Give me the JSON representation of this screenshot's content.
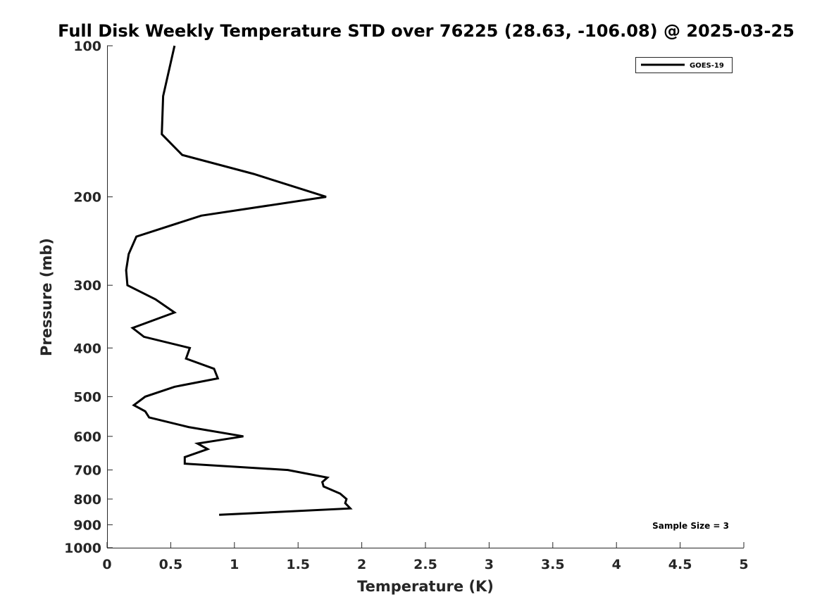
{
  "chart_data": {
    "type": "line",
    "title": "Full Disk Weekly Temperature STD over 76225 (28.63, -106.08) @ 2025-03-25",
    "xlabel": "Temperature (K)",
    "ylabel": "Pressure (mb)",
    "xlim": [
      0,
      5
    ],
    "ylim": [
      100,
      1000
    ],
    "y_scale": "log",
    "y_reversed": true,
    "grid": false,
    "legend_position": "top-right",
    "x_ticks": [
      "0",
      "0.5",
      "1",
      "1.5",
      "2",
      "2.5",
      "3",
      "3.5",
      "4",
      "4.5",
      "5"
    ],
    "y_ticks": [
      "100",
      "200",
      "300",
      "400",
      "500",
      "600",
      "700",
      "800",
      "900",
      "1000"
    ],
    "series": [
      {
        "name": "GOES-19",
        "color": "#000000",
        "points": [
          {
            "x": 0.53,
            "y": 100
          },
          {
            "x": 0.44,
            "y": 126
          },
          {
            "x": 0.43,
            "y": 150
          },
          {
            "x": 0.59,
            "y": 165
          },
          {
            "x": 1.15,
            "y": 180
          },
          {
            "x": 1.72,
            "y": 200
          },
          {
            "x": 0.74,
            "y": 218
          },
          {
            "x": 0.23,
            "y": 240
          },
          {
            "x": 0.17,
            "y": 260
          },
          {
            "x": 0.15,
            "y": 280
          },
          {
            "x": 0.16,
            "y": 300
          },
          {
            "x": 0.38,
            "y": 320
          },
          {
            "x": 0.53,
            "y": 340
          },
          {
            "x": 0.2,
            "y": 365
          },
          {
            "x": 0.29,
            "y": 380
          },
          {
            "x": 0.65,
            "y": 400
          },
          {
            "x": 0.62,
            "y": 420
          },
          {
            "x": 0.84,
            "y": 440
          },
          {
            "x": 0.87,
            "y": 460
          },
          {
            "x": 0.53,
            "y": 478
          },
          {
            "x": 0.3,
            "y": 500
          },
          {
            "x": 0.21,
            "y": 520
          },
          {
            "x": 0.3,
            "y": 535
          },
          {
            "x": 0.33,
            "y": 550
          },
          {
            "x": 0.64,
            "y": 575
          },
          {
            "x": 1.07,
            "y": 600
          },
          {
            "x": 0.71,
            "y": 620
          },
          {
            "x": 0.79,
            "y": 636
          },
          {
            "x": 0.61,
            "y": 660
          },
          {
            "x": 0.61,
            "y": 680
          },
          {
            "x": 1.42,
            "y": 700
          },
          {
            "x": 1.73,
            "y": 725
          },
          {
            "x": 1.69,
            "y": 740
          },
          {
            "x": 1.7,
            "y": 755
          },
          {
            "x": 1.83,
            "y": 780
          },
          {
            "x": 1.88,
            "y": 800
          },
          {
            "x": 1.87,
            "y": 815
          },
          {
            "x": 1.91,
            "y": 835
          },
          {
            "x": 0.88,
            "y": 860
          }
        ]
      }
    ],
    "annotations": [
      {
        "text": "Sample Size = 3"
      }
    ]
  }
}
